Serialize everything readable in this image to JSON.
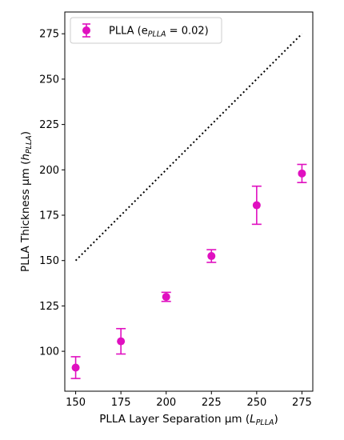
{
  "chart_data": {
    "type": "scatter",
    "xlabel": {
      "prefix": "PLLA Layer Separation μm (",
      "var": "L",
      "sub": "PLLA",
      "suffix": ")"
    },
    "ylabel": {
      "prefix": "PLLA Thickness μm (",
      "var": "h",
      "sub": "PLLA",
      "suffix": ")"
    },
    "xlim": [
      144,
      281
    ],
    "ylim": [
      78,
      287
    ],
    "xticks": [
      150,
      175,
      200,
      225,
      250,
      275
    ],
    "xtick_labels": [
      "150",
      "175",
      "200",
      "225",
      "250",
      "275"
    ],
    "yticks": [
      100,
      125,
      150,
      175,
      200,
      225,
      250,
      275
    ],
    "ytick_labels": [
      "100",
      "125",
      "150",
      "175",
      "200",
      "225",
      "250",
      "275"
    ],
    "grid": false,
    "legend_position": "top-left",
    "series": [
      {
        "name": {
          "prefix": "PLLA (e",
          "sub": "PLLA",
          "suffix": " = 0.02)"
        },
        "color": "#e010c0",
        "marker": "circle",
        "x": [
          150,
          175,
          200,
          225,
          250,
          275
        ],
        "y": [
          91,
          105.5,
          130,
          152.5,
          180.5,
          198
        ],
        "yerr": [
          6,
          7,
          2.5,
          3.5,
          10.5,
          5
        ]
      }
    ],
    "reference_line": {
      "style": "dotted",
      "color": "#000000",
      "x": [
        150,
        275
      ],
      "y": [
        150,
        275
      ]
    }
  }
}
